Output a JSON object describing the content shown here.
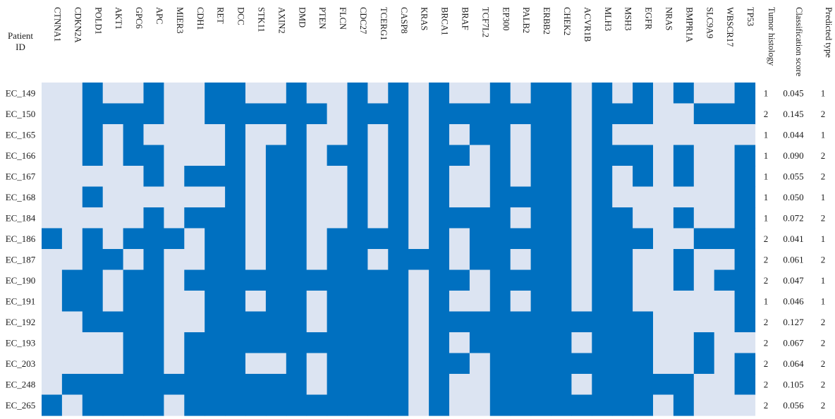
{
  "chart_data": {
    "type": "heatmap",
    "title": "",
    "colors": {
      "mutated": "#0070C0",
      "wildtype": "#DCE4F2"
    },
    "row_header": "Patient ID",
    "row_header_lines": [
      "Patient",
      "ID"
    ],
    "genes": [
      "CTNNA1",
      "CDKN2A",
      "POLD1",
      "AKT1",
      "GPC6",
      "APC",
      "MIER3",
      "CDH1",
      "RET",
      "DCC",
      "STK11",
      "AXIN2",
      "DMD",
      "PTEN",
      "FLCN",
      "CDC27",
      "TCERG1",
      "CASP8",
      "KRAS",
      "BRCA1",
      "BRAF",
      "TCF7L2",
      "EP300",
      "PALB2",
      "ERBB2",
      "CHEK2",
      "ACVR1B",
      "MLH3",
      "MSH3",
      "EGFR",
      "NRAS",
      "BMPR1A",
      "SLC9A9",
      "WBSCR17",
      "TP53"
    ],
    "extra_columns": [
      "Tumor histology",
      "Classification  score",
      "Predicted type"
    ],
    "patients": [
      "EC_149",
      "EC_150",
      "EC_165",
      "EC_166",
      "EC_167",
      "EC_168",
      "EC_184",
      "EC_186",
      "EC_187",
      "EC_190",
      "EC_191",
      "EC_192",
      "EC_193",
      "EC_203",
      "EC_248",
      "EC_265"
    ],
    "matrix": [
      [
        0,
        0,
        1,
        0,
        0,
        1,
        0,
        0,
        1,
        1,
        0,
        0,
        1,
        0,
        0,
        1,
        0,
        1,
        0,
        1,
        0,
        0,
        1,
        0,
        1,
        1,
        0,
        1,
        0,
        1,
        0,
        1,
        0,
        0,
        1
      ],
      [
        0,
        0,
        1,
        1,
        1,
        1,
        0,
        0,
        1,
        1,
        1,
        1,
        1,
        1,
        0,
        1,
        1,
        1,
        0,
        1,
        1,
        1,
        1,
        1,
        1,
        1,
        0,
        1,
        1,
        1,
        0,
        0,
        1,
        1,
        1
      ],
      [
        0,
        0,
        1,
        0,
        1,
        0,
        0,
        0,
        0,
        1,
        0,
        0,
        1,
        0,
        0,
        1,
        0,
        1,
        0,
        1,
        0,
        1,
        1,
        0,
        1,
        1,
        0,
        1,
        0,
        0,
        0,
        0,
        0,
        0,
        0
      ],
      [
        0,
        0,
        1,
        0,
        1,
        1,
        0,
        0,
        0,
        1,
        0,
        1,
        1,
        0,
        1,
        1,
        0,
        1,
        0,
        1,
        1,
        0,
        1,
        0,
        1,
        1,
        0,
        1,
        1,
        1,
        0,
        1,
        0,
        0,
        1
      ],
      [
        0,
        0,
        0,
        0,
        0,
        1,
        0,
        1,
        1,
        1,
        0,
        1,
        1,
        0,
        0,
        1,
        0,
        1,
        0,
        1,
        0,
        0,
        1,
        0,
        1,
        1,
        0,
        1,
        0,
        1,
        0,
        1,
        0,
        0,
        1
      ],
      [
        0,
        0,
        1,
        0,
        0,
        0,
        0,
        0,
        0,
        1,
        0,
        1,
        1,
        0,
        0,
        1,
        0,
        1,
        0,
        1,
        0,
        0,
        1,
        1,
        1,
        1,
        0,
        1,
        0,
        0,
        0,
        0,
        0,
        0,
        1
      ],
      [
        0,
        0,
        0,
        0,
        0,
        1,
        0,
        1,
        1,
        1,
        0,
        1,
        1,
        0,
        0,
        1,
        0,
        1,
        0,
        1,
        1,
        1,
        1,
        0,
        1,
        1,
        0,
        1,
        1,
        0,
        0,
        1,
        0,
        0,
        1
      ],
      [
        1,
        0,
        1,
        0,
        1,
        1,
        1,
        0,
        1,
        1,
        0,
        1,
        1,
        0,
        1,
        1,
        1,
        1,
        0,
        1,
        0,
        1,
        1,
        1,
        1,
        1,
        0,
        1,
        1,
        1,
        0,
        0,
        1,
        1,
        1
      ],
      [
        0,
        0,
        1,
        1,
        0,
        1,
        0,
        0,
        1,
        1,
        0,
        1,
        1,
        0,
        1,
        1,
        0,
        1,
        1,
        1,
        0,
        1,
        1,
        0,
        1,
        1,
        0,
        1,
        1,
        0,
        0,
        1,
        0,
        0,
        1
      ],
      [
        0,
        1,
        1,
        0,
        1,
        1,
        0,
        1,
        1,
        1,
        1,
        1,
        1,
        1,
        1,
        1,
        1,
        1,
        0,
        1,
        1,
        0,
        1,
        1,
        1,
        1,
        0,
        1,
        1,
        0,
        0,
        1,
        0,
        1,
        1
      ],
      [
        0,
        1,
        1,
        0,
        1,
        1,
        0,
        0,
        1,
        1,
        0,
        1,
        1,
        0,
        1,
        1,
        1,
        1,
        0,
        1,
        0,
        0,
        1,
        0,
        1,
        1,
        0,
        1,
        1,
        0,
        0,
        0,
        0,
        0,
        1
      ],
      [
        0,
        0,
        1,
        1,
        1,
        1,
        0,
        0,
        1,
        1,
        1,
        1,
        1,
        0,
        1,
        1,
        1,
        1,
        0,
        1,
        1,
        1,
        1,
        1,
        1,
        1,
        1,
        1,
        1,
        1,
        0,
        0,
        0,
        0,
        1
      ],
      [
        0,
        0,
        0,
        0,
        1,
        1,
        0,
        1,
        1,
        1,
        1,
        1,
        1,
        1,
        1,
        1,
        1,
        1,
        0,
        1,
        0,
        1,
        1,
        1,
        1,
        1,
        0,
        1,
        1,
        1,
        0,
        0,
        1,
        0,
        0
      ],
      [
        0,
        0,
        0,
        0,
        1,
        1,
        0,
        1,
        1,
        1,
        0,
        0,
        1,
        0,
        1,
        1,
        1,
        1,
        0,
        1,
        1,
        0,
        1,
        1,
        1,
        1,
        1,
        1,
        1,
        1,
        0,
        0,
        1,
        0,
        1
      ],
      [
        0,
        1,
        1,
        1,
        1,
        1,
        1,
        1,
        1,
        1,
        1,
        1,
        1,
        0,
        1,
        1,
        1,
        1,
        0,
        1,
        0,
        0,
        1,
        1,
        1,
        1,
        0,
        1,
        1,
        1,
        1,
        1,
        0,
        0,
        1
      ],
      [
        1,
        0,
        1,
        1,
        1,
        1,
        0,
        1,
        1,
        1,
        1,
        1,
        1,
        1,
        1,
        1,
        1,
        1,
        0,
        1,
        0,
        0,
        1,
        1,
        1,
        1,
        1,
        1,
        1,
        1,
        0,
        1,
        0,
        0,
        0
      ]
    ],
    "tumor_histology": [
      "1",
      "2",
      "1",
      "1",
      "1",
      "1",
      "1",
      "2",
      "2",
      "2",
      "1",
      "2",
      "2",
      "2",
      "2",
      "2"
    ],
    "classification_score": [
      "0.045",
      "0.145",
      "0.044",
      "0.090",
      "0.055",
      "0.050",
      "0.072",
      "0.041",
      "0.061",
      "0.047",
      "0.046",
      "0.127",
      "0.067",
      "0.064",
      "0.105",
      "0.056"
    ],
    "predicted_type": [
      "1",
      "2",
      "1",
      "2",
      "2",
      "1",
      "2",
      "1",
      "2",
      "1",
      "1",
      "2",
      "2",
      "2",
      "2",
      "2"
    ]
  }
}
